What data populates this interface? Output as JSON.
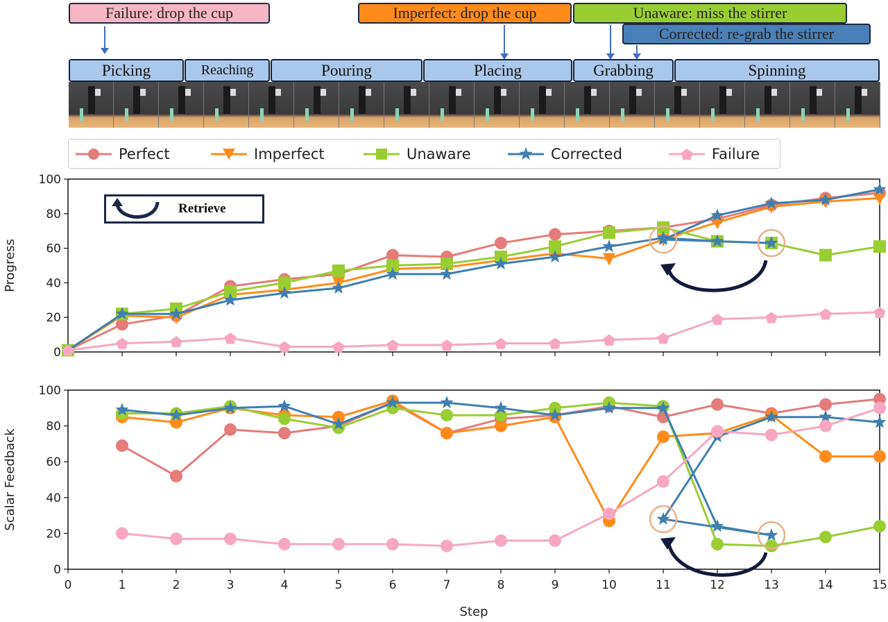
{
  "annotations": {
    "failure": {
      "text": "Failure: drop the cup",
      "color": "#f7b6c4"
    },
    "imperfect": {
      "text": "Imperfect: drop the cup",
      "color": "#ff8c1a"
    },
    "unaware": {
      "text": "Unaware: miss the stirrer",
      "color": "#9acd32"
    },
    "corrected": {
      "text": "Corrected: re-grab the stirrer",
      "color": "#4a80b8"
    }
  },
  "phases": [
    "Picking",
    "Reaching",
    "Pouring",
    "Placing",
    "Grabbing",
    "Spinning"
  ],
  "retrieve_label": "Retrieve",
  "legend": [
    {
      "name": "Perfect",
      "marker": "circle",
      "color": "#e57b7b"
    },
    {
      "name": "Imperfect",
      "marker": "triangle-down",
      "color": "#ff8c1a"
    },
    {
      "name": "Unaware",
      "marker": "square",
      "color": "#9acd32"
    },
    {
      "name": "Corrected",
      "marker": "star",
      "color": "#3f7fb0"
    },
    {
      "name": "Failure",
      "marker": "pentagon",
      "color": "#f7a8c0"
    }
  ],
  "chart_data": [
    {
      "type": "line",
      "ylabel": "Progress",
      "xlabel": "",
      "xlim": [
        0,
        15
      ],
      "ylim": [
        0,
        100
      ],
      "yticks": [
        "0",
        "20",
        "40",
        "60",
        "80",
        "100"
      ],
      "grid": false,
      "series": [
        {
          "name": "Perfect",
          "marker": "circle",
          "color": "#e57b7b",
          "x": [
            0,
            1,
            2,
            3,
            4,
            5,
            6,
            7,
            8,
            9,
            10,
            11,
            12,
            13,
            14,
            15
          ],
          "y": [
            1,
            16,
            21,
            38,
            42,
            45,
            56,
            55,
            63,
            68,
            70,
            72,
            77,
            85,
            89,
            92
          ]
        },
        {
          "name": "Imperfect",
          "marker": "triangle-down",
          "color": "#ff8c1a",
          "x": [
            0,
            1,
            2,
            3,
            4,
            5,
            6,
            7,
            8,
            9,
            10,
            11,
            12,
            13,
            14,
            15
          ],
          "y": [
            1,
            21,
            20,
            33,
            36,
            40,
            48,
            49,
            53,
            57,
            54,
            65,
            75,
            84,
            87,
            89
          ]
        },
        {
          "name": "Unaware",
          "marker": "square",
          "color": "#9acd32",
          "x": [
            0,
            1,
            2,
            3,
            4,
            5,
            6,
            7,
            8,
            9,
            10,
            11,
            12,
            13,
            14,
            15
          ],
          "y": [
            1,
            22,
            25,
            35,
            40,
            47,
            50,
            51,
            55,
            61,
            69,
            72,
            64,
            63,
            56,
            61
          ]
        },
        {
          "name": "Corrected",
          "marker": "star",
          "color": "#3f7fb0",
          "x": [
            0,
            1,
            2,
            3,
            4,
            5,
            6,
            7,
            8,
            9,
            10,
            11,
            12,
            13,
            11,
            12,
            13,
            14,
            15
          ],
          "y": [
            1,
            22,
            22,
            30,
            34,
            37,
            45,
            45,
            51,
            55,
            61,
            66,
            64,
            63,
            65,
            79,
            86,
            88,
            94
          ]
        },
        {
          "name": "Failure",
          "marker": "pentagon",
          "color": "#f7a8c0",
          "x": [
            0,
            1,
            2,
            3,
            4,
            5,
            6,
            7,
            8,
            9,
            10,
            11,
            12,
            13,
            14,
            15
          ],
          "y": [
            1,
            5,
            6,
            8,
            3,
            3,
            4,
            4,
            5,
            5,
            7,
            8,
            19,
            20,
            22,
            23
          ]
        }
      ],
      "highlights": [
        {
          "x": 11,
          "y": 65
        },
        {
          "x": 13,
          "y": 63
        }
      ]
    },
    {
      "type": "line",
      "ylabel": "Scalar Feedback",
      "xlabel": "Step",
      "xlim": [
        0,
        15
      ],
      "ylim": [
        0,
        100
      ],
      "xticks": [
        "0",
        "1",
        "2",
        "3",
        "4",
        "5",
        "6",
        "7",
        "8",
        "9",
        "10",
        "11",
        "12",
        "13",
        "14",
        "15"
      ],
      "yticks": [
        "0",
        "20",
        "40",
        "60",
        "80",
        "100"
      ],
      "grid": false,
      "series": [
        {
          "name": "Perfect",
          "marker": "circle",
          "color": "#e57b7b",
          "x": [
            1,
            2,
            3,
            4,
            5,
            6,
            7,
            8,
            9,
            10,
            11,
            12,
            13,
            14,
            15
          ],
          "y": [
            69,
            52,
            78,
            76,
            80,
            93,
            76,
            84,
            86,
            91,
            85,
            92,
            87,
            92,
            95
          ]
        },
        {
          "name": "Imperfect",
          "marker": "circle",
          "color": "#ff8c1a",
          "x": [
            1,
            2,
            3,
            4,
            5,
            6,
            7,
            8,
            9,
            10,
            11,
            12,
            13,
            14,
            15
          ],
          "y": [
            85,
            82,
            90,
            86,
            85,
            94,
            76,
            80,
            85,
            27,
            74,
            76,
            86,
            63,
            63
          ]
        },
        {
          "name": "Unaware",
          "marker": "circle",
          "color": "#9acd32",
          "x": [
            1,
            2,
            3,
            4,
            5,
            6,
            7,
            8,
            9,
            10,
            11,
            12,
            13,
            14,
            15
          ],
          "y": [
            87,
            87,
            91,
            84,
            79,
            90,
            86,
            86,
            90,
            93,
            91,
            14,
            13,
            18,
            24
          ]
        },
        {
          "name": "Corrected",
          "marker": "star",
          "color": "#3f7fb0",
          "x": [
            1,
            2,
            3,
            4,
            5,
            6,
            7,
            8,
            9,
            10,
            11,
            12,
            13,
            11,
            12,
            13,
            14,
            15
          ],
          "y": [
            89,
            86,
            90,
            91,
            81,
            93,
            93,
            90,
            86,
            90,
            90,
            24,
            19,
            28,
            74,
            85,
            85,
            82
          ]
        },
        {
          "name": "Failure",
          "marker": "circle",
          "color": "#f7a8c0",
          "x": [
            1,
            2,
            3,
            4,
            5,
            6,
            7,
            8,
            9,
            10,
            11,
            12,
            13,
            14,
            15
          ],
          "y": [
            20,
            17,
            17,
            14,
            14,
            14,
            13,
            16,
            16,
            31,
            49,
            77,
            75,
            80,
            90
          ]
        }
      ],
      "highlights": [
        {
          "x": 11,
          "y": 28
        },
        {
          "x": 13,
          "y": 19
        }
      ]
    }
  ]
}
